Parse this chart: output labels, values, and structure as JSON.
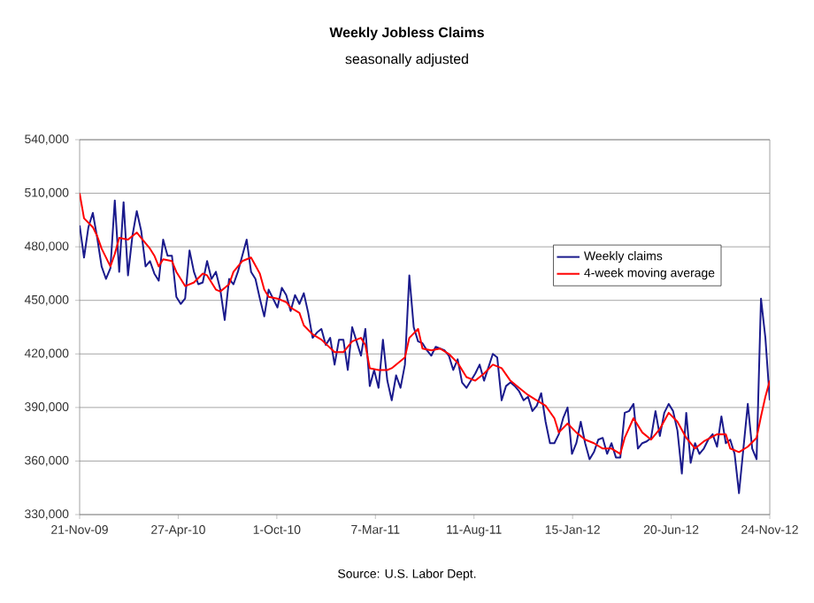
{
  "chart_data": {
    "type": "line",
    "title": "Weekly Jobless Claims",
    "subtitle": "seasonally adjusted",
    "annotations": [
      "Source: U.S. Labor Dept."
    ],
    "xlim": [
      "2009-11-21",
      "2012-11-24"
    ],
    "xticks": [
      {
        "value": "2009-11-21",
        "label": "21-Nov-09"
      },
      {
        "value": "2010-04-27",
        "label": "27-Apr-10"
      },
      {
        "value": "2010-10-01",
        "label": "1-Oct-10"
      },
      {
        "value": "2011-03-07",
        "label": "7-Mar-11"
      },
      {
        "value": "2011-08-11",
        "label": "11-Aug-11"
      },
      {
        "value": "2012-01-15",
        "label": "15-Jan-12"
      },
      {
        "value": "2012-06-20",
        "label": "20-Jun-12"
      },
      {
        "value": "2012-11-24",
        "label": "24-Nov-12"
      }
    ],
    "ylim": [
      330000,
      540000
    ],
    "yticks": [
      {
        "value": 330000,
        "label": "330,000"
      },
      {
        "value": 360000,
        "label": "360,000"
      },
      {
        "value": 390000,
        "label": "390,000"
      },
      {
        "value": 420000,
        "label": "420,000"
      },
      {
        "value": 450000,
        "label": "450,000"
      },
      {
        "value": 480000,
        "label": "480,000"
      },
      {
        "value": 510000,
        "label": "510,000"
      },
      {
        "value": 540000,
        "label": "540,000"
      }
    ],
    "grid": "y",
    "legend": "right",
    "marker": "none",
    "line_style": "solid",
    "series": [
      {
        "name": "Weekly claims",
        "color": "#1a1a8c",
        "x": [
          "2009-11-21",
          "2009-11-28",
          "2009-12-05",
          "2009-12-12",
          "2009-12-19",
          "2009-12-26",
          "2010-01-02",
          "2010-01-09",
          "2010-01-16",
          "2010-01-23",
          "2010-01-30",
          "2010-02-06",
          "2010-02-13",
          "2010-02-20",
          "2010-02-27",
          "2010-03-06",
          "2010-03-13",
          "2010-03-20",
          "2010-03-27",
          "2010-04-03",
          "2010-04-10",
          "2010-04-17",
          "2010-04-24",
          "2010-05-01",
          "2010-05-08",
          "2010-05-15",
          "2010-05-22",
          "2010-05-29",
          "2010-06-05",
          "2010-06-12",
          "2010-06-19",
          "2010-06-26",
          "2010-07-03",
          "2010-07-10",
          "2010-07-17",
          "2010-07-24",
          "2010-07-31",
          "2010-08-07",
          "2010-08-14",
          "2010-08-21",
          "2010-08-28",
          "2010-09-04",
          "2010-09-11",
          "2010-09-18",
          "2010-09-25",
          "2010-10-02",
          "2010-10-09",
          "2010-10-16",
          "2010-10-23",
          "2010-10-30",
          "2010-11-06",
          "2010-11-13",
          "2010-11-20",
          "2010-11-27",
          "2010-12-04",
          "2010-12-11",
          "2010-12-18",
          "2010-12-25",
          "2011-01-01",
          "2011-01-08",
          "2011-01-15",
          "2011-01-22",
          "2011-01-29",
          "2011-02-05",
          "2011-02-12",
          "2011-02-19",
          "2011-02-26",
          "2011-03-05",
          "2011-03-12",
          "2011-03-19",
          "2011-03-26",
          "2011-04-02",
          "2011-04-09",
          "2011-04-16",
          "2011-04-23",
          "2011-04-30",
          "2011-05-07",
          "2011-05-14",
          "2011-05-21",
          "2011-05-28",
          "2011-06-04",
          "2011-06-11",
          "2011-06-25",
          "2011-07-02",
          "2011-07-09",
          "2011-07-16",
          "2011-07-23",
          "2011-07-30",
          "2011-08-06",
          "2011-08-13",
          "2011-08-20",
          "2011-08-27",
          "2011-09-10",
          "2011-09-17",
          "2011-09-24",
          "2011-10-01",
          "2011-10-08",
          "2011-10-15",
          "2011-10-22",
          "2011-10-29",
          "2011-11-05",
          "2011-11-12",
          "2011-11-19",
          "2011-11-26",
          "2011-12-03",
          "2011-12-10",
          "2011-12-17",
          "2011-12-24",
          "2011-12-31",
          "2012-01-07",
          "2012-01-14",
          "2012-01-21",
          "2012-01-28",
          "2012-02-04",
          "2012-02-11",
          "2012-02-18",
          "2012-02-25",
          "2012-03-03",
          "2012-03-10",
          "2012-03-17",
          "2012-03-24",
          "2012-03-31",
          "2012-04-07",
          "2012-04-14",
          "2012-04-21",
          "2012-04-28",
          "2012-05-05",
          "2012-05-12",
          "2012-05-19",
          "2012-05-26",
          "2012-06-02",
          "2012-06-09",
          "2012-06-16",
          "2012-06-23",
          "2012-06-30",
          "2012-07-07",
          "2012-07-14",
          "2012-07-21",
          "2012-07-28",
          "2012-08-04",
          "2012-08-11",
          "2012-08-18",
          "2012-08-25",
          "2012-09-01",
          "2012-09-08",
          "2012-09-15",
          "2012-09-22",
          "2012-09-29",
          "2012-10-06",
          "2012-10-13",
          "2012-10-20",
          "2012-10-27",
          "2012-11-03",
          "2012-11-10",
          "2012-11-17",
          "2012-11-24"
        ],
        "values": [
          492000,
          474000,
          491000,
          499000,
          485000,
          469000,
          462000,
          468000,
          506000,
          466000,
          505000,
          464000,
          486000,
          500000,
          489000,
          469000,
          472000,
          465000,
          461000,
          484000,
          475000,
          475000,
          452000,
          448000,
          451000,
          478000,
          466000,
          459000,
          460000,
          472000,
          462000,
          466000,
          456000,
          439000,
          462000,
          459000,
          466000,
          475000,
          484000,
          466000,
          462000,
          451000,
          441000,
          456000,
          451000,
          446000,
          457000,
          453000,
          444000,
          453000,
          448000,
          454000,
          443000,
          429000,
          432000,
          434000,
          425000,
          429000,
          414000,
          428000,
          428000,
          411000,
          435000,
          427000,
          419000,
          434000,
          402000,
          411000,
          401000,
          428000,
          405000,
          394000,
          408000,
          401000,
          414000,
          464000,
          435000,
          427000,
          426000,
          422000,
          419000,
          424000,
          422000,
          419000,
          411000,
          417000,
          404000,
          401000,
          405000,
          409000,
          414000,
          405000,
          420000,
          418000,
          394000,
          402000,
          404000,
          402000,
          399000,
          394000,
          396000,
          388000,
          391000,
          398000,
          382000,
          370000,
          370000,
          375000,
          384000,
          390000,
          364000,
          370000,
          382000,
          370000,
          361000,
          365000,
          372000,
          373000,
          364000,
          370000,
          362000,
          362000,
          387000,
          388000,
          392000,
          367000,
          370000,
          371000,
          373000,
          388000,
          374000,
          387000,
          392000,
          388000,
          377000,
          353000,
          387000,
          359000,
          370000,
          364000,
          367000,
          372000,
          375000,
          368000,
          385000,
          370000,
          372000,
          364000,
          342000,
          367000,
          392000,
          367000,
          361000,
          451000,
          429000,
          394000
        ]
      },
      {
        "name": "4-week moving average",
        "color": "#ff0000",
        "x": [
          "2009-11-21",
          "2009-11-28",
          "2009-12-12",
          "2009-12-19",
          "2009-12-26",
          "2010-01-09",
          "2010-01-16",
          "2010-01-23",
          "2010-02-06",
          "2010-02-13",
          "2010-02-20",
          "2010-02-27",
          "2010-03-13",
          "2010-03-20",
          "2010-03-27",
          "2010-04-03",
          "2010-04-17",
          "2010-04-24",
          "2010-05-08",
          "2010-05-22",
          "2010-06-05",
          "2010-06-12",
          "2010-06-26",
          "2010-07-03",
          "2010-07-17",
          "2010-07-24",
          "2010-08-07",
          "2010-08-21",
          "2010-09-04",
          "2010-09-11",
          "2010-09-18",
          "2010-10-02",
          "2010-10-16",
          "2010-10-23",
          "2010-11-06",
          "2010-11-13",
          "2010-11-27",
          "2010-12-11",
          "2011-01-01",
          "2011-01-15",
          "2011-01-29",
          "2011-02-12",
          "2011-02-19",
          "2011-02-26",
          "2011-03-12",
          "2011-03-26",
          "2011-04-02",
          "2011-04-09",
          "2011-04-23",
          "2011-04-30",
          "2011-05-14",
          "2011-05-21",
          "2011-06-04",
          "2011-06-18",
          "2011-07-02",
          "2011-07-16",
          "2011-07-30",
          "2011-08-13",
          "2011-08-27",
          "2011-09-10",
          "2011-09-24",
          "2011-10-08",
          "2011-10-22",
          "2011-11-05",
          "2011-11-19",
          "2011-12-03",
          "2011-12-17",
          "2011-12-24",
          "2012-01-07",
          "2012-01-21",
          "2012-02-04",
          "2012-02-18",
          "2012-03-03",
          "2012-03-17",
          "2012-03-31",
          "2012-04-07",
          "2012-04-21",
          "2012-05-05",
          "2012-05-19",
          "2012-06-02",
          "2012-06-16",
          "2012-06-30",
          "2012-07-14",
          "2012-07-28",
          "2012-08-11",
          "2012-09-01",
          "2012-09-15",
          "2012-09-22",
          "2012-10-06",
          "2012-10-20",
          "2012-11-03",
          "2012-11-10",
          "2012-11-17",
          "2012-11-24"
        ],
        "values": [
          510000,
          496000,
          491000,
          486000,
          479000,
          469000,
          476000,
          485000,
          484000,
          486000,
          488000,
          485000,
          479000,
          475000,
          469000,
          473000,
          472000,
          466000,
          458000,
          460000,
          465000,
          464000,
          456000,
          455000,
          459000,
          466000,
          472000,
          474000,
          465000,
          456000,
          452000,
          451000,
          449000,
          446000,
          443000,
          436000,
          431000,
          428000,
          421000,
          421000,
          427000,
          429000,
          425000,
          412000,
          411000,
          411000,
          412000,
          414000,
          418000,
          429000,
          434000,
          423000,
          422000,
          423000,
          420000,
          415000,
          407000,
          405000,
          409000,
          414000,
          412000,
          405000,
          401000,
          397000,
          394000,
          391000,
          384000,
          376000,
          381000,
          376000,
          372000,
          370000,
          367000,
          367000,
          364000,
          373000,
          384000,
          376000,
          372000,
          378000,
          387000,
          382000,
          373000,
          367000,
          371000,
          375000,
          375000,
          367000,
          365000,
          368000,
          373000,
          385000,
          396000,
          405000
        ]
      }
    ]
  }
}
